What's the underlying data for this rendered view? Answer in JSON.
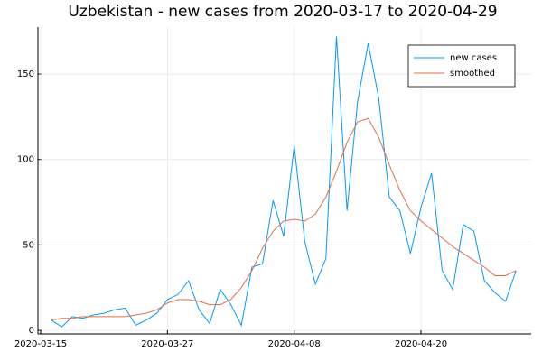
{
  "chart_data": {
    "type": "line",
    "title": "Uzbekistan - new cases from 2020-03-17 to 2020-04-29",
    "x": [
      "2020-03-16",
      "2020-03-17",
      "2020-03-18",
      "2020-03-19",
      "2020-03-20",
      "2020-03-21",
      "2020-03-22",
      "2020-03-23",
      "2020-03-24",
      "2020-03-25",
      "2020-03-26",
      "2020-03-27",
      "2020-03-28",
      "2020-03-29",
      "2020-03-30",
      "2020-03-31",
      "2020-04-01",
      "2020-04-02",
      "2020-04-03",
      "2020-04-04",
      "2020-04-05",
      "2020-04-06",
      "2020-04-07",
      "2020-04-08",
      "2020-04-09",
      "2020-04-10",
      "2020-04-11",
      "2020-04-12",
      "2020-04-13",
      "2020-04-14",
      "2020-04-15",
      "2020-04-16",
      "2020-04-17",
      "2020-04-18",
      "2020-04-19",
      "2020-04-20",
      "2020-04-21",
      "2020-04-22",
      "2020-04-23",
      "2020-04-24",
      "2020-04-25",
      "2020-04-26",
      "2020-04-27",
      "2020-04-28",
      "2020-04-29"
    ],
    "series": [
      {
        "name": "new cases",
        "color": "#009af9",
        "values": [
          6,
          2,
          8,
          7,
          9,
          10,
          12,
          13,
          3,
          6,
          10,
          18,
          21,
          29,
          12,
          4,
          24,
          15,
          3,
          37,
          39,
          76,
          55,
          108,
          52,
          27,
          42,
          172,
          70,
          134,
          168,
          136,
          78,
          70,
          45,
          72,
          92,
          35,
          24,
          62,
          58,
          29,
          22,
          17,
          35
        ]
      },
      {
        "name": "smoothed",
        "color": "#e26f46",
        "values": [
          6,
          7,
          7,
          8,
          8,
          8,
          8,
          8,
          9,
          10,
          12,
          16,
          18,
          18,
          17,
          15,
          15,
          18,
          25,
          35,
          48,
          58,
          64,
          65,
          64,
          68,
          78,
          93,
          110,
          122,
          124,
          113,
          97,
          82,
          70,
          64,
          59,
          54,
          49,
          45,
          41,
          37,
          32,
          32,
          35
        ]
      }
    ],
    "xlim": [
      "2020-03-15",
      "2020-04-30"
    ],
    "xticks": [
      "2020-03-15",
      "2020-03-27",
      "2020-04-08",
      "2020-04-20"
    ],
    "ylim": [
      -2.1,
      177.5
    ],
    "yticks": [
      0,
      50,
      100,
      150
    ],
    "grid": true,
    "legend": "top-right"
  }
}
